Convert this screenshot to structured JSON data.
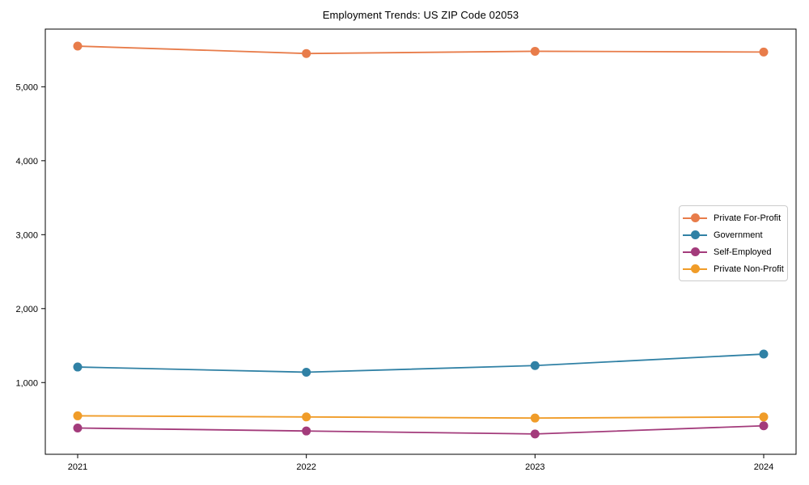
{
  "chart_data": {
    "type": "line",
    "title": "Employment Trends: US ZIP Code 02053",
    "xlabel": "",
    "ylabel": "",
    "categories": [
      "2021",
      "2022",
      "2023",
      "2024"
    ],
    "series": [
      {
        "name": "Private For-Profit",
        "color": "#e87c4a",
        "values": [
          5550,
          5450,
          5480,
          5470
        ]
      },
      {
        "name": "Government",
        "color": "#3081a5",
        "values": [
          1210,
          1140,
          1230,
          1385
        ]
      },
      {
        "name": "Self-Employed",
        "color": "#a33b7b",
        "values": [
          385,
          345,
          305,
          415
        ]
      },
      {
        "name": "Private Non-Profit",
        "color": "#f09c28",
        "values": [
          550,
          535,
          520,
          535
        ]
      }
    ],
    "ylim": [
      30,
      5780
    ],
    "yticks": [
      1000,
      2000,
      3000,
      4000,
      5000
    ],
    "ytick_labels": [
      "1,000",
      "2,000",
      "3,000",
      "4,000",
      "5,000"
    ],
    "grid": false,
    "legend_position": "center right"
  }
}
